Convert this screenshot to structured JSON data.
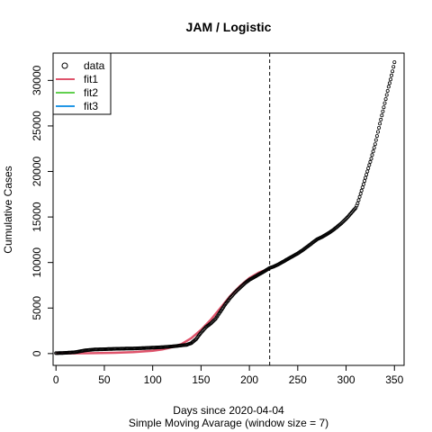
{
  "chart_data": {
    "type": "line",
    "title": "JAM / Logistic",
    "xlabel": "Days since 2020-04-04",
    "xlabel2": "Simple Moving Avarage (window size = 7)",
    "ylabel": "Cumulative Cases",
    "xlim": [
      -3,
      360
    ],
    "ylim": [
      -1300,
      33000
    ],
    "x_ticks": [
      0,
      50,
      100,
      150,
      200,
      250,
      300,
      350
    ],
    "y_ticks": [
      0,
      5000,
      10000,
      15000,
      20000,
      25000,
      30000
    ],
    "vline_x": 221,
    "legend": {
      "position": "top-left",
      "entries": [
        {
          "label": "data",
          "kind": "point",
          "color": "#000000"
        },
        {
          "label": "fit1",
          "kind": "line",
          "color": "#DF536B"
        },
        {
          "label": "fit2",
          "kind": "line",
          "color": "#61D04F"
        },
        {
          "label": "fit3",
          "kind": "line",
          "color": "#2297E6"
        }
      ]
    },
    "data_points": [
      [
        0,
        40
      ],
      [
        10,
        80
      ],
      [
        20,
        150
      ],
      [
        30,
        350
      ],
      [
        40,
        450
      ],
      [
        50,
        480
      ],
      [
        60,
        520
      ],
      [
        70,
        540
      ],
      [
        80,
        560
      ],
      [
        90,
        600
      ],
      [
        100,
        650
      ],
      [
        110,
        700
      ],
      [
        120,
        780
      ],
      [
        130,
        900
      ],
      [
        135,
        950
      ],
      [
        140,
        1150
      ],
      [
        145,
        1600
      ],
      [
        150,
        2300
      ],
      [
        155,
        2900
      ],
      [
        160,
        3300
      ],
      [
        165,
        3800
      ],
      [
        170,
        4600
      ],
      [
        175,
        5400
      ],
      [
        180,
        6100
      ],
      [
        185,
        6700
      ],
      [
        190,
        7200
      ],
      [
        195,
        7700
      ],
      [
        200,
        8100
      ],
      [
        205,
        8400
      ],
      [
        210,
        8700
      ],
      [
        215,
        9000
      ],
      [
        221,
        9400
      ],
      [
        225,
        9550
      ],
      [
        230,
        9800
      ],
      [
        235,
        10100
      ],
      [
        240,
        10400
      ],
      [
        245,
        10700
      ],
      [
        250,
        11000
      ],
      [
        255,
        11350
      ],
      [
        260,
        11750
      ],
      [
        265,
        12150
      ],
      [
        270,
        12550
      ],
      [
        275,
        12800
      ],
      [
        280,
        13100
      ],
      [
        285,
        13450
      ],
      [
        290,
        13850
      ],
      [
        295,
        14300
      ],
      [
        300,
        14800
      ],
      [
        305,
        15400
      ],
      [
        310,
        16000
      ],
      [
        312,
        16500
      ],
      [
        314,
        17200
      ],
      [
        316,
        17900
      ],
      [
        318,
        18600
      ],
      [
        320,
        19300
      ],
      [
        322,
        20000
      ],
      [
        324,
        20700
      ],
      [
        326,
        21400
      ],
      [
        328,
        22200
      ],
      [
        330,
        23000
      ],
      [
        332,
        23900
      ],
      [
        334,
        24800
      ],
      [
        336,
        25700
      ],
      [
        338,
        26600
      ],
      [
        340,
        27500
      ],
      [
        342,
        28400
      ],
      [
        344,
        29300
      ],
      [
        346,
        30100
      ],
      [
        348,
        31000
      ],
      [
        350,
        32000
      ]
    ],
    "series": [
      {
        "name": "fit1",
        "color": "#DF536B",
        "values": [
          [
            0,
            10
          ],
          [
            20,
            20
          ],
          [
            40,
            40
          ],
          [
            60,
            80
          ],
          [
            80,
            150
          ],
          [
            100,
            300
          ],
          [
            110,
            450
          ],
          [
            120,
            700
          ],
          [
            130,
            1050
          ],
          [
            140,
            1700
          ],
          [
            150,
            2600
          ],
          [
            160,
            3700
          ],
          [
            170,
            5000
          ],
          [
            180,
            6300
          ],
          [
            190,
            7400
          ],
          [
            200,
            8300
          ],
          [
            210,
            8900
          ],
          [
            221,
            9350
          ]
        ]
      }
    ]
  }
}
